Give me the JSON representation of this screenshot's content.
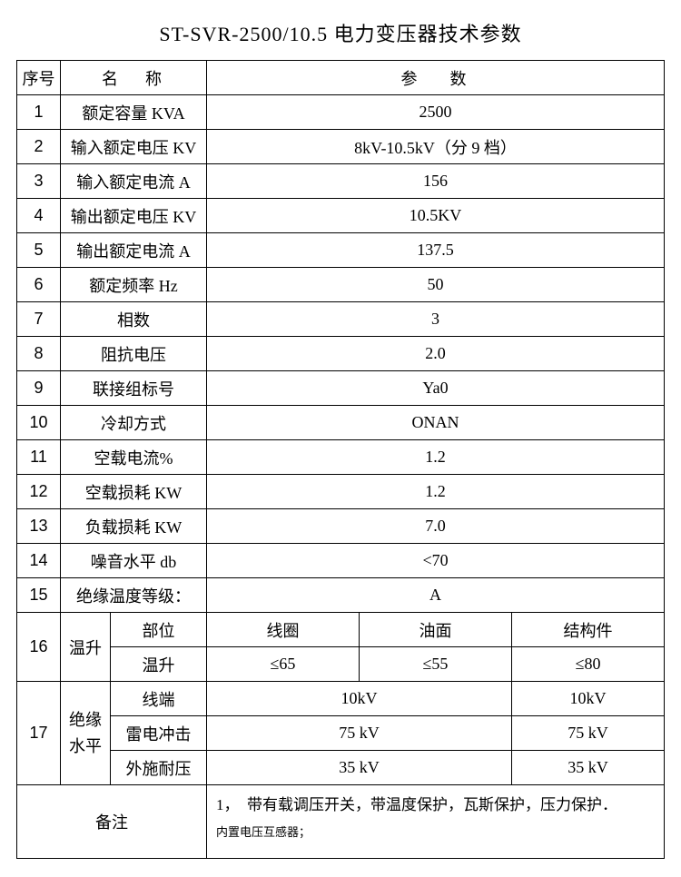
{
  "title": "ST-SVR-2500/10.5 电力变压器技术参数",
  "header": {
    "seq": "序号",
    "name": "名称",
    "param": "参数"
  },
  "rows": [
    {
      "seq": "1",
      "name": "额定容量 KVA",
      "value": "2500"
    },
    {
      "seq": "2",
      "name": "输入额定电压 KV",
      "value": "8kV-10.5kV（分 9 档）"
    },
    {
      "seq": "3",
      "name": "输入额定电流 A",
      "value": "156"
    },
    {
      "seq": "4",
      "name": "输出额定电压 KV",
      "value": "10.5KV"
    },
    {
      "seq": "5",
      "name": "输出额定电流 A",
      "value": "137.5"
    },
    {
      "seq": "6",
      "name": "额定频率 Hz",
      "value": "50"
    },
    {
      "seq": "7",
      "name": "相数",
      "value": "3"
    },
    {
      "seq": "8",
      "name": "阻抗电压",
      "value": "2.0"
    },
    {
      "seq": "9",
      "name": "联接组标号",
      "value": "Ya0"
    },
    {
      "seq": "10",
      "name": "冷却方式",
      "value": "ONAN"
    },
    {
      "seq": "11",
      "name": "空载电流%",
      "value": "1.2"
    },
    {
      "seq": "12",
      "name": "空载损耗 KW",
      "value": "1.2"
    },
    {
      "seq": "13",
      "name": "负载损耗 KW",
      "value": "7.0"
    },
    {
      "seq": "14",
      "name": "噪音水平 db",
      "value": "<70"
    },
    {
      "seq": "15",
      "name": "绝缘温度等级：",
      "value": "A"
    }
  ],
  "row16": {
    "seq": "16",
    "group": "温升",
    "sub1_label": "部位",
    "sub1_v1": "线圈",
    "sub1_v2": "油面",
    "sub1_v3": "结构件",
    "sub2_label": "温升",
    "sub2_v1": "≤65",
    "sub2_v2": "≤55",
    "sub2_v3": "≤80"
  },
  "row17": {
    "seq": "17",
    "group": "绝缘水平",
    "r1_label": "线端",
    "r1_v1": "10kV",
    "r1_v2": "10kV",
    "r2_label": "雷电冲击",
    "r2_v1": "75 kV",
    "r2_v2": "75 kV",
    "r3_label": "外施耐压",
    "r3_v1": "35 kV",
    "r3_v2": "35 kV"
  },
  "remark": {
    "label": "备注",
    "line1": "1，　带有载调压开关，带温度保护，瓦斯保护，压力保护．",
    "line2": "内置电压互感器；"
  }
}
